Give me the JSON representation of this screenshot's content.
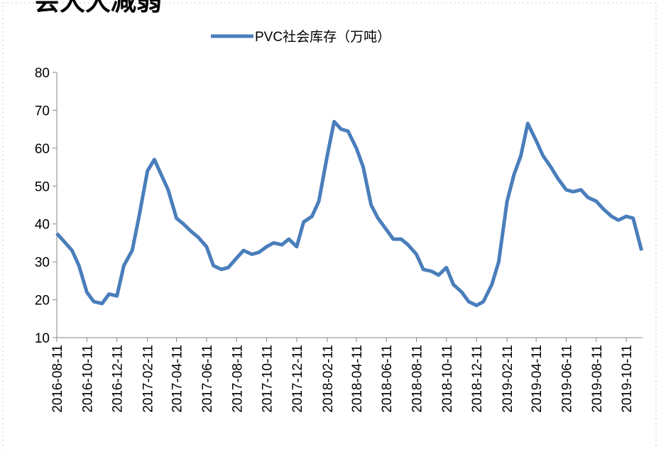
{
  "chart_data": {
    "type": "line",
    "title": "会大大减弱",
    "series": [
      {
        "name": "PVC社会库存（万吨）",
        "color": "#4a7ebb",
        "values": [
          37.5,
          35.5,
          33,
          29,
          22,
          19.5,
          19,
          21.5,
          21,
          29,
          33,
          42,
          54,
          57,
          53,
          49,
          41.5,
          40,
          38,
          36.5,
          34,
          29,
          28,
          28.5,
          31,
          33,
          32,
          32.5,
          34,
          35,
          34.5,
          36,
          34,
          40.5,
          42,
          46,
          58,
          67,
          65,
          64.5,
          60,
          55,
          45,
          41.5,
          38.5,
          36,
          36,
          34.5,
          32,
          28,
          27.5,
          26.5,
          28.5,
          24,
          22,
          19.5,
          18.5,
          19.5,
          24,
          30,
          46,
          53,
          58,
          66.5,
          62,
          58,
          55,
          52,
          49,
          48.5,
          49,
          47,
          46,
          44,
          42,
          41,
          42,
          41.5,
          33
        ]
      }
    ],
    "x": [
      "2016-08-11",
      "2016-08-25",
      "2016-09-11",
      "2016-09-25",
      "2016-10-11",
      "2016-10-25",
      "2016-11-11",
      "2016-11-25",
      "2016-12-11",
      "2016-12-25",
      "2017-01-11",
      "2017-01-25",
      "2017-02-11",
      "2017-02-25",
      "2017-03-11",
      "2017-03-25",
      "2017-04-11",
      "2017-04-25",
      "2017-05-11",
      "2017-05-25",
      "2017-06-11",
      "2017-06-25",
      "2017-07-11",
      "2017-07-25",
      "2017-08-11",
      "2017-08-25",
      "2017-09-11",
      "2017-09-25",
      "2017-10-11",
      "2017-10-25",
      "2017-11-11",
      "2017-11-25",
      "2017-12-11",
      "2017-12-25",
      "2018-01-11",
      "2018-01-25",
      "2018-02-11",
      "2018-02-25",
      "2018-03-11",
      "2018-03-25",
      "2018-04-11",
      "2018-04-25",
      "2018-05-11",
      "2018-05-25",
      "2018-06-11",
      "2018-06-25",
      "2018-07-11",
      "2018-07-25",
      "2018-08-11",
      "2018-08-25",
      "2018-09-11",
      "2018-09-25",
      "2018-10-11",
      "2018-10-25",
      "2018-11-11",
      "2018-11-25",
      "2018-12-11",
      "2018-12-25",
      "2019-01-11",
      "2019-01-25",
      "2019-02-11",
      "2019-02-25",
      "2019-03-11",
      "2019-03-25",
      "2019-04-11",
      "2019-04-25",
      "2019-05-11",
      "2019-05-25",
      "2019-06-11",
      "2019-06-25",
      "2019-07-11",
      "2019-07-25",
      "2019-08-11",
      "2019-08-25",
      "2019-09-11",
      "2019-09-25",
      "2019-10-11",
      "2019-10-25",
      "2019-11-11"
    ],
    "xlim": [
      "2016-08-11",
      "2019-11-13"
    ],
    "xticks": [
      "2016-08-11",
      "2016-10-11",
      "2016-12-11",
      "2017-02-11",
      "2017-04-11",
      "2017-06-11",
      "2017-08-11",
      "2017-10-11",
      "2017-12-11",
      "2018-02-11",
      "2018-04-11",
      "2018-06-11",
      "2018-08-11",
      "2018-10-11",
      "2018-12-11",
      "2019-02-11",
      "2019-04-11",
      "2019-06-11",
      "2019-08-11",
      "2019-10-11"
    ],
    "ylim": [
      10,
      80
    ],
    "yticks": [
      10,
      20,
      30,
      40,
      50,
      60,
      70,
      80
    ],
    "grid": false,
    "legend": "top"
  }
}
